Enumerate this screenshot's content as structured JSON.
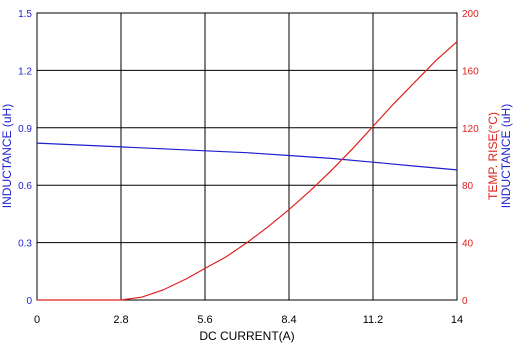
{
  "chart_data": {
    "type": "line",
    "xlabel": "DC CURRENT(A)",
    "ylabel_left": "INDUCTANCE (uH)",
    "ylabel_right_temp": "TEMP. RISE(°C)",
    "ylabel_right_inductance": "INDUCTANCE (uH)",
    "xlim": [
      0,
      14
    ],
    "x_ticks": [
      "0",
      "2.8",
      "5.6",
      "8.4",
      "11.2",
      "14"
    ],
    "x_tick_values": [
      0,
      2.8,
      5.6,
      8.4,
      11.2,
      14
    ],
    "ylim_left": [
      0,
      1.5
    ],
    "y_left_ticks": [
      "0",
      "0.3",
      "0.6",
      "0.9",
      "1.2",
      "1.5"
    ],
    "y_left_tick_values": [
      0,
      0.3,
      0.6,
      0.9,
      1.2,
      1.5
    ],
    "ylim_right": [
      0,
      200
    ],
    "y_right_ticks": [
      "0",
      "40",
      "80",
      "120",
      "160",
      "200"
    ],
    "y_right_tick_values": [
      0,
      40,
      80,
      120,
      160,
      200
    ],
    "grid": true,
    "series": [
      {
        "axis": "left",
        "color": "#1f1fd0",
        "x": [
          0,
          1.4,
          2.8,
          4.2,
          5.6,
          7.0,
          8.4,
          9.8,
          11.2,
          12.6,
          14
        ],
        "y": [
          0.82,
          0.81,
          0.8,
          0.79,
          0.78,
          0.77,
          0.755,
          0.74,
          0.72,
          0.7,
          0.68
        ]
      },
      {
        "axis": "right",
        "color": "#e0201c",
        "x": [
          0,
          2.0,
          2.8,
          3.5,
          4.2,
          5.0,
          5.6,
          6.3,
          7.0,
          7.7,
          8.4,
          9.1,
          9.8,
          10.5,
          11.2,
          11.9,
          12.6,
          13.3,
          14
        ],
        "y": [
          0,
          0,
          0,
          2,
          7,
          15,
          22,
          30,
          40,
          51,
          63,
          76,
          90,
          105,
          121,
          137,
          152,
          167,
          180
        ]
      }
    ]
  }
}
